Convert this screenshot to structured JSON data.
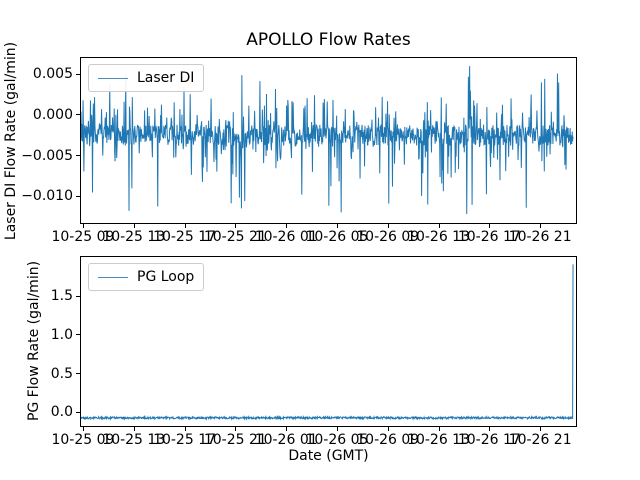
{
  "figure": {
    "title": "APOLLO Flow Rates",
    "xlabel": "Date (GMT)",
    "line_color": "#1f77b4"
  },
  "chart_data": [
    {
      "type": "line",
      "title": "APOLLO Flow Rates",
      "ylabel": "Laser DI Flow Rate (gal/min)",
      "legend": "Laser DI",
      "legend_position": "upper left",
      "grid": false,
      "ylim": [
        -0.0133,
        0.007
      ],
      "yticks": [
        0.005,
        0.0,
        -0.005,
        -0.01
      ],
      "ytick_labels": [
        "0.005",
        "0.000",
        "−0.005",
        "−0.010"
      ],
      "xtick_labels": [
        "10-25 09",
        "10-25 13",
        "10-25 17",
        "10-25 21",
        "10-26 01",
        "10-26 05",
        "10-26 09",
        "10-26 13",
        "10-26 17",
        "10-26 21"
      ],
      "series": [
        {
          "name": "Laser DI",
          "color": "#1f77b4",
          "noise": {
            "baseline": -0.0025,
            "band_halfwidth": 0.0013,
            "typical_up": 0.002,
            "occasional_up": 0.0052,
            "typical_down": -0.008,
            "occasional_down": -0.0115
          },
          "notable_points": [
            [
              0.09,
              0.005
            ],
            [
              0.325,
              0.0049
            ],
            [
              0.785,
              0.006
            ],
            [
              0.93,
              0.004
            ],
            [
              0.097,
              -0.0118
            ],
            [
              0.324,
              -0.0115
            ],
            [
              0.526,
              -0.012
            ],
            [
              0.779,
              -0.0122
            ]
          ],
          "max": 0.006,
          "min": -0.0122
        }
      ]
    },
    {
      "type": "line",
      "ylabel": "PG Flow Rate (gal/min)",
      "xlabel": "Date (GMT)",
      "legend": "PG Loop",
      "legend_position": "upper left",
      "grid": false,
      "ylim": [
        -0.175,
        2.005
      ],
      "yticks": [
        1.5,
        1.0,
        0.5,
        0.0
      ],
      "ytick_labels": [
        "1.5",
        "1.0",
        "0.5",
        "0.0"
      ],
      "xtick_labels": [
        "10-25 09",
        "10-25 13",
        "10-25 17",
        "10-25 21",
        "10-26 01",
        "10-26 05",
        "10-26 09",
        "10-26 13",
        "10-26 17",
        "10-26 21"
      ],
      "series": [
        {
          "name": "PG Loop",
          "color": "#1f77b4",
          "noise": {
            "baseline": -0.07,
            "band_halfwidth": 0.014
          },
          "end_spike": 1.91,
          "max": 1.91,
          "min": -0.08
        }
      ]
    }
  ]
}
